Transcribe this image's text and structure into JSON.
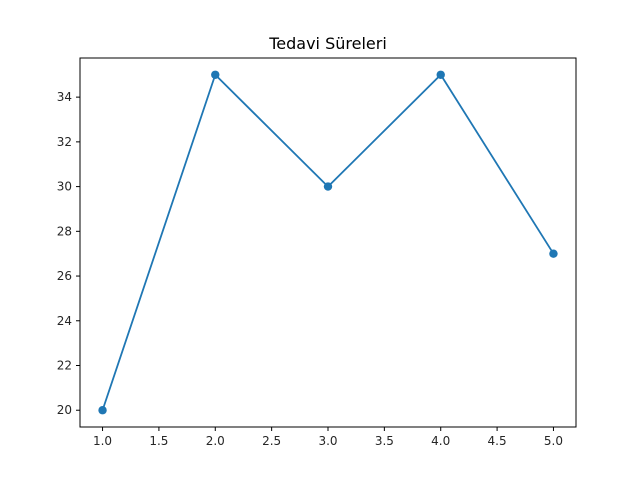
{
  "chart_data": {
    "type": "line",
    "title": "Tedavi Süreleri",
    "xlabel": "",
    "ylabel": "",
    "x": [
      1,
      2,
      3,
      4,
      5
    ],
    "series": [
      {
        "values": [
          20,
          35,
          30,
          35,
          27
        ],
        "color": "#1f77b4",
        "marker": "circle"
      }
    ],
    "xlim": [
      0.8,
      5.2
    ],
    "ylim": [
      19.25,
      35.75
    ],
    "xticks": [
      1.0,
      1.5,
      2.0,
      2.5,
      3.0,
      3.5,
      4.0,
      4.5,
      5.0
    ],
    "xtick_labels": [
      "1.0",
      "1.5",
      "2.0",
      "2.5",
      "3.0",
      "3.5",
      "4.0",
      "4.5",
      "5.0"
    ],
    "yticks": [
      20,
      22,
      24,
      26,
      28,
      30,
      32,
      34
    ],
    "ytick_labels": [
      "20",
      "22",
      "24",
      "26",
      "28",
      "30",
      "32",
      "34"
    ],
    "grid": false,
    "legend": "none"
  }
}
